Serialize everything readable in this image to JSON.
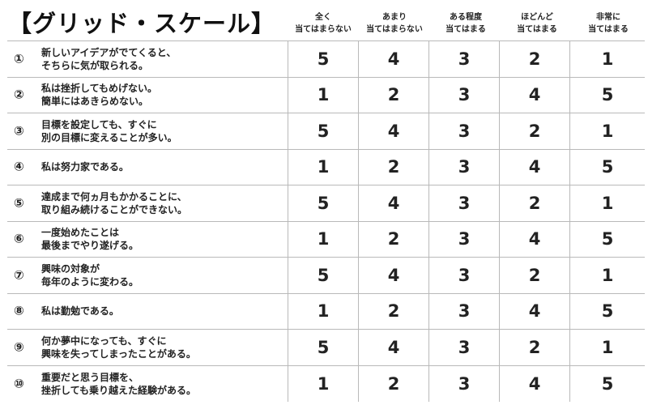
{
  "title": "【グリッド・スケール】",
  "columns": [
    {
      "line1": "全く",
      "line2": "当てはまらない"
    },
    {
      "line1": "あまり",
      "line2": "当てはまらない"
    },
    {
      "line1": "ある程度",
      "line2": "当てはまる"
    },
    {
      "line1": "ほどんど",
      "line2": "当てはまる"
    },
    {
      "line1": "非常に",
      "line2": "当てはまる"
    }
  ],
  "rows": [
    {
      "num": "①",
      "line1": "新しいアイデアがでてくると、",
      "line2": "そちらに気が取られる。",
      "scores": [
        "5",
        "4",
        "3",
        "2",
        "1"
      ]
    },
    {
      "num": "②",
      "line1": "私は挫折してもめげない。",
      "line2": "簡単にはあきらめない。",
      "scores": [
        "1",
        "2",
        "3",
        "4",
        "5"
      ]
    },
    {
      "num": "③",
      "line1": "目標を設定しても、すぐに",
      "line2": "別の目標に変えることが多い。",
      "scores": [
        "5",
        "4",
        "3",
        "2",
        "1"
      ]
    },
    {
      "num": "④",
      "line1": "私は努力家である。",
      "line2": "",
      "scores": [
        "1",
        "2",
        "3",
        "4",
        "5"
      ]
    },
    {
      "num": "⑤",
      "line1": "達成まで何ヵ月もかかることに、",
      "line2": "取り組み続けることができない。",
      "scores": [
        "5",
        "4",
        "3",
        "2",
        "1"
      ]
    },
    {
      "num": "⑥",
      "line1": "一度始めたことは",
      "line2": "最後までやり遂げる。",
      "scores": [
        "1",
        "2",
        "3",
        "4",
        "5"
      ]
    },
    {
      "num": "⑦",
      "line1": "興味の対象が",
      "line2": "毎年のように変わる。",
      "scores": [
        "5",
        "4",
        "3",
        "2",
        "1"
      ]
    },
    {
      "num": "⑧",
      "line1": "私は勤勉である。",
      "line2": "",
      "scores": [
        "1",
        "2",
        "3",
        "4",
        "5"
      ]
    },
    {
      "num": "⑨",
      "line1": "何か夢中になっても、すぐに",
      "line2": "興味を失ってしまったことがある。",
      "scores": [
        "5",
        "4",
        "3",
        "2",
        "1"
      ]
    },
    {
      "num": "⑩",
      "line1": "重要だと思う目標を、",
      "line2": "挫折しても乗り越えた経験がある。",
      "scores": [
        "1",
        "2",
        "3",
        "4",
        "5"
      ]
    }
  ]
}
